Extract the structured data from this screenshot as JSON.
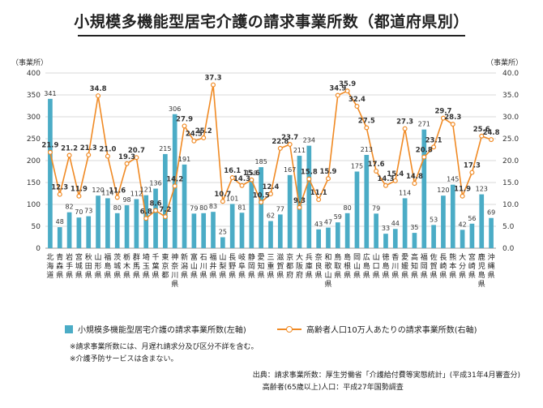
{
  "title": "小規模多機能型居宅介護の請求事業所数（都道府県別）",
  "axis_units": {
    "left": "（事業所）",
    "right": "（事業所）"
  },
  "legend": {
    "bar": "小規模多機能型居宅介護の請求事業所数(左軸)",
    "line": "高齢者人口10万人あたりの請求事業所数(右軸)"
  },
  "notes": [
    "※請求事業所数には、月遅れ請求分及び区分不詳を含む。",
    "※介護予防サービスは含まない。"
  ],
  "source": {
    "line1": "出典：請求事業所数：厚生労働省「介護給付費等実態統計」(平成31年4月審査分)",
    "line2": "高齢者(65歳以上)人口：平成27年国勢調査"
  },
  "colors": {
    "bar": "#4bacc6",
    "line": "#f08a24"
  },
  "chart_data": {
    "type": "bar",
    "categories": [
      "北海道",
      "青森県",
      "岩手県",
      "宮城県",
      "秋田県",
      "山形県",
      "福島県",
      "茨城県",
      "栃木県",
      "群馬県",
      "埼玉県",
      "千葉県",
      "東京都",
      "神奈川県",
      "新潟県",
      "富山県",
      "石川県",
      "福井県",
      "山梨県",
      "長野県",
      "岐阜県",
      "静岡県",
      "愛知県",
      "三重県",
      "滋賀県",
      "京都府",
      "大阪府",
      "兵庫県",
      "奈良県",
      "和歌山県",
      "鳥取県",
      "島根県",
      "岡山県",
      "広島県",
      "山口県",
      "徳島県",
      "香川県",
      "愛媛県",
      "高知県",
      "福岡県",
      "佐賀県",
      "長崎県",
      "熊本県",
      "大分県",
      "宮崎県",
      "鹿児島県",
      "沖縄県"
    ],
    "bar_series": {
      "values": [
        341,
        48,
        82,
        70,
        73,
        120,
        114,
        80,
        98,
        112,
        121,
        136,
        215,
        306,
        191,
        79,
        80,
        83,
        25,
        101,
        81,
        159,
        185,
        62,
        77,
        167,
        211,
        234,
        43,
        47,
        59,
        80,
        175,
        213,
        79,
        33,
        44,
        114,
        35,
        271,
        53,
        120,
        145,
        42,
        56,
        123,
        69
      ],
      "axis": "left"
    },
    "line_series": {
      "values": [
        21.9,
        12.3,
        21.2,
        11.9,
        21.3,
        34.8,
        21.0,
        11.6,
        19.3,
        20.7,
        6.8,
        8.6,
        7.2,
        14.2,
        27.9,
        24.5,
        25.2,
        37.3,
        10.7,
        16.1,
        14.3,
        15.6,
        10.5,
        12.4,
        22.8,
        23.7,
        9.3,
        15.8,
        11.1,
        15.9,
        34.9,
        35.9,
        32.4,
        27.5,
        17.6,
        14.3,
        15.4,
        27.3,
        14.8,
        20.8,
        23.1,
        29.7,
        28.3,
        11.9,
        17.3,
        25.6,
        24.8
      ],
      "axis": "right"
    },
    "ylim_left": [
      0,
      400
    ],
    "yticks_left": [
      0,
      50,
      100,
      150,
      200,
      250,
      300,
      350,
      400
    ],
    "ylim_right": [
      0,
      40
    ],
    "yticks_right": [
      "0.0",
      "5.0",
      "10.0",
      "15.0",
      "20.0",
      "25.0",
      "30.0",
      "35.0",
      "40.0"
    ],
    "grid": true,
    "legend_position": "bottom"
  }
}
